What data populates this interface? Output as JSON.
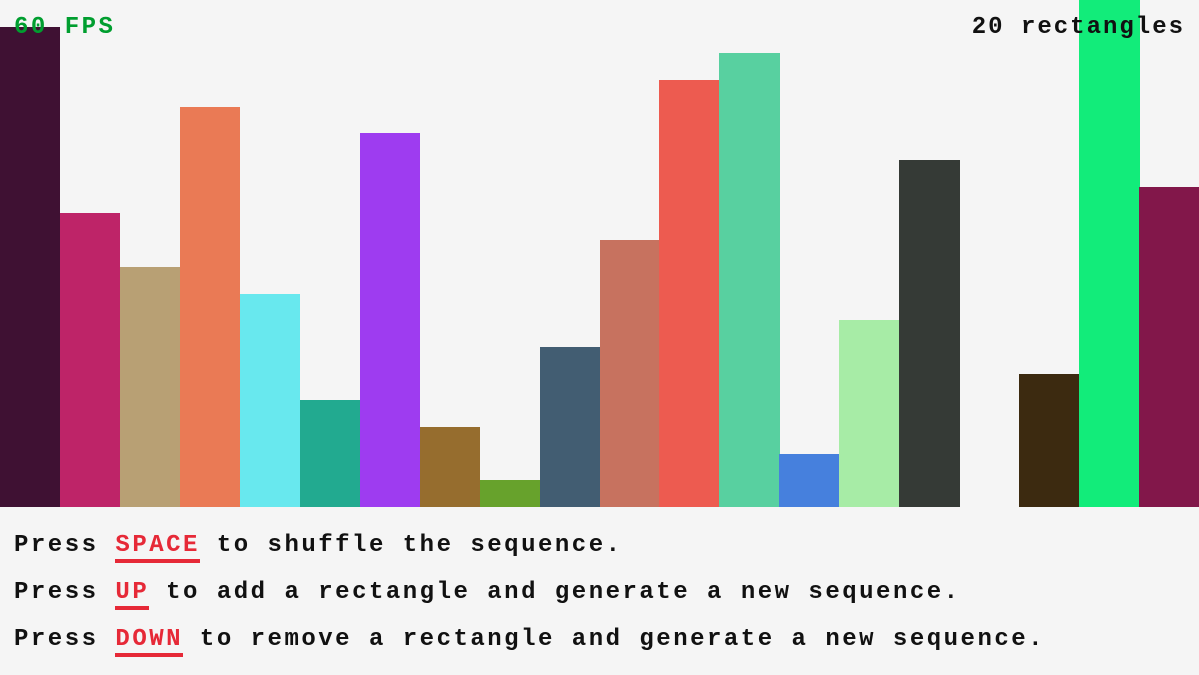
{
  "hud": {
    "fps": "60 FPS",
    "fps_color": "#009e2f",
    "count": "20 rectangles"
  },
  "chart_data": {
    "type": "bar",
    "max_value": 19,
    "values": [
      18,
      11,
      9,
      15,
      8,
      4,
      14,
      3,
      1,
      6,
      10,
      16,
      17,
      2,
      7,
      13,
      0,
      5,
      19,
      12
    ],
    "colors": [
      "#3f1133",
      "#be2468",
      "#b8a074",
      "#ea7a55",
      "#68e8ee",
      "#22aa90",
      "#9e3cf0",
      "#966d2e",
      "#67a22c",
      "#425d72",
      "#c7725f",
      "#ed5b50",
      "#58d0a0",
      "#4680dd",
      "#a7eca6",
      "#353a36",
      "#888888",
      "#3c2a10",
      "#12ec7a",
      "#82174a"
    ]
  },
  "instructions": [
    {
      "pre": "Press ",
      "key": "SPACE",
      "post": " to shuffle the sequence."
    },
    {
      "pre": "Press ",
      "key": "UP",
      "post": " to add a rectangle and generate a new sequence."
    },
    {
      "pre": "Press ",
      "key": "DOWN",
      "post": " to remove a rectangle and generate a new sequence."
    }
  ],
  "key_color": "#e62937"
}
